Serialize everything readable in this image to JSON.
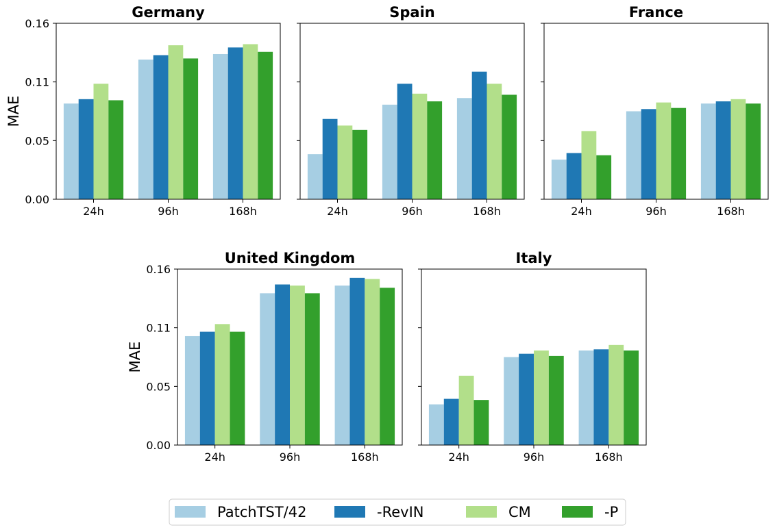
{
  "chart_data": {
    "type": "bar",
    "categories": [
      "24h",
      "96h",
      "168h"
    ],
    "ylabel": "MAE",
    "ylim": [
      0,
      0.16
    ],
    "yticks": [
      "0.00",
      "0.05",
      "0.11",
      "0.16"
    ],
    "legend": {
      "placement": "bottom-center",
      "entries": [
        "PatchTST/42",
        "-RevIN",
        "CM",
        "-P"
      ]
    },
    "series_colors": [
      "#a6cee3",
      "#1f78b4",
      "#b2df8a",
      "#33a02c"
    ],
    "panels": [
      {
        "title": "Germany",
        "series": [
          {
            "name": "PatchTST/42",
            "values": [
              0.087,
              0.127,
              0.132
            ]
          },
          {
            "name": "-RevIN",
            "values": [
              0.091,
              0.131,
              0.138
            ]
          },
          {
            "name": "CM",
            "values": [
              0.105,
              0.14,
              0.141
            ]
          },
          {
            "name": "-P",
            "values": [
              0.09,
              0.128,
              0.134
            ]
          }
        ]
      },
      {
        "title": "Spain",
        "series": [
          {
            "name": "PatchTST/42",
            "values": [
              0.041,
              0.086,
              0.092
            ]
          },
          {
            "name": "-RevIN",
            "values": [
              0.073,
              0.105,
              0.116
            ]
          },
          {
            "name": "CM",
            "values": [
              0.067,
              0.096,
              0.105
            ]
          },
          {
            "name": "-P",
            "values": [
              0.063,
              0.089,
              0.095
            ]
          }
        ]
      },
      {
        "title": "France",
        "series": [
          {
            "name": "PatchTST/42",
            "values": [
              0.036,
              0.08,
              0.087
            ]
          },
          {
            "name": "-RevIN",
            "values": [
              0.042,
              0.082,
              0.089
            ]
          },
          {
            "name": "CM",
            "values": [
              0.062,
              0.088,
              0.091
            ]
          },
          {
            "name": "-P",
            "values": [
              0.04,
              0.083,
              0.087
            ]
          }
        ]
      },
      {
        "title": "United Kingdom",
        "series": [
          {
            "name": "PatchTST/42",
            "values": [
              0.099,
              0.138,
              0.145
            ]
          },
          {
            "name": "-RevIN",
            "values": [
              0.103,
              0.146,
              0.152
            ]
          },
          {
            "name": "CM",
            "values": [
              0.11,
              0.145,
              0.151
            ]
          },
          {
            "name": "-P",
            "values": [
              0.103,
              0.138,
              0.143
            ]
          }
        ]
      },
      {
        "title": "Italy",
        "series": [
          {
            "name": "PatchTST/42",
            "values": [
              0.037,
              0.08,
              0.086
            ]
          },
          {
            "name": "-RevIN",
            "values": [
              0.042,
              0.083,
              0.087
            ]
          },
          {
            "name": "CM",
            "values": [
              0.063,
              0.086,
              0.091
            ]
          },
          {
            "name": "-P",
            "values": [
              0.041,
              0.081,
              0.086
            ]
          }
        ]
      }
    ]
  }
}
